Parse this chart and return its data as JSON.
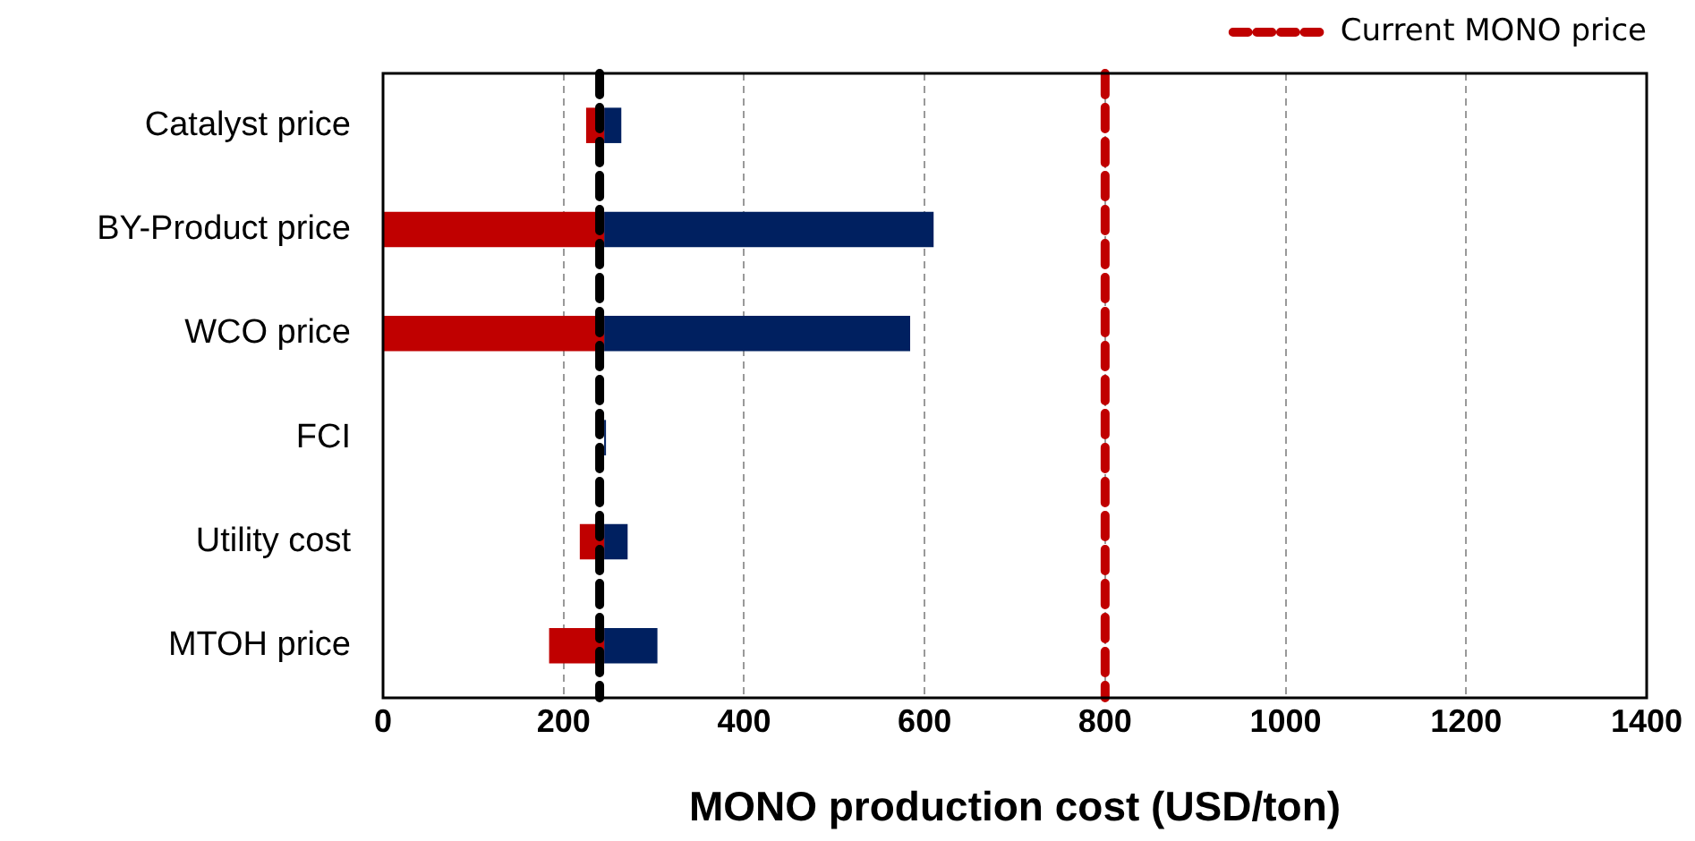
{
  "chart_data": {
    "type": "bar",
    "orientation": "horizontal",
    "xlabel": "MONO production cost (USD/ton)",
    "categories": [
      "Catalyst price",
      "BY-Product price",
      "WCO price",
      "FCI",
      "Utility cost",
      "MTOH price"
    ],
    "series": [
      {
        "color": "#c00000",
        "base": [
          225,
          0,
          0,
          null,
          218,
          184
        ],
        "values": [
          20,
          245,
          245,
          null,
          27,
          61
        ]
      },
      {
        "color": "#002060",
        "base": [
          245,
          245,
          245,
          245,
          245,
          245
        ],
        "values": [
          19,
          365,
          339,
          2,
          26,
          59
        ]
      }
    ],
    "xlim": [
      0,
      1400
    ],
    "xticks": [
      0,
      200,
      400,
      600,
      800,
      1000,
      1200,
      1400
    ],
    "grid": "x",
    "legend": "top right",
    "ref_lines": [
      {
        "axis": "x",
        "value": 240,
        "color": "#000000",
        "line_style": "dashed"
      },
      {
        "axis": "x",
        "value": 800,
        "label": "Current MONO price",
        "color": "#c00000",
        "line_style": "dashed"
      }
    ]
  }
}
